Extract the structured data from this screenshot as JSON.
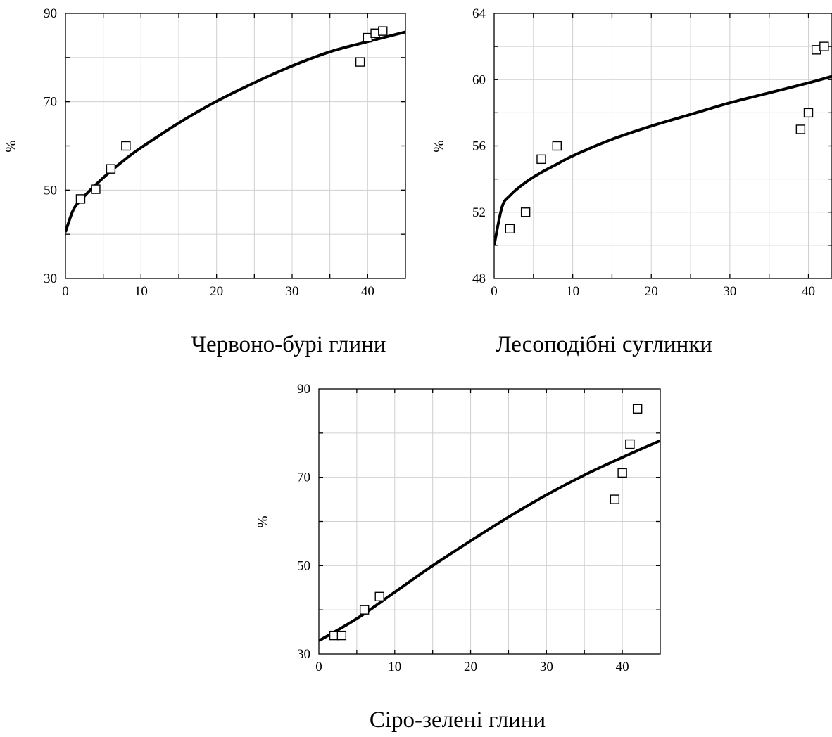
{
  "chart_data": [
    {
      "type": "scatter",
      "title": "",
      "caption": "Червоно-бурі глини",
      "xlabel": "",
      "ylabel": "%",
      "xlim": [
        0,
        45
      ],
      "ylim": [
        30,
        90
      ],
      "xticks": [
        0,
        10,
        20,
        30,
        40
      ],
      "xtick_labels": [
        "0",
        "10",
        "20",
        "30",
        "40"
      ],
      "yticks": [
        30,
        50,
        70,
        90
      ],
      "ytick_labels": [
        "30",
        "50",
        "70",
        "90"
      ],
      "grid": true,
      "points": [
        {
          "x": 2,
          "y": 48
        },
        {
          "x": 4,
          "y": 50.2
        },
        {
          "x": 6,
          "y": 54.8
        },
        {
          "x": 8,
          "y": 60
        },
        {
          "x": 39,
          "y": 79
        },
        {
          "x": 40,
          "y": 84.5
        },
        {
          "x": 41,
          "y": 85.5
        },
        {
          "x": 42,
          "y": 86
        }
      ],
      "fit_curve": [
        {
          "x": 0,
          "y": 40.5
        },
        {
          "x": 1,
          "y": 45.4
        },
        {
          "x": 2,
          "y": 47.7
        },
        {
          "x": 4,
          "y": 51.2
        },
        {
          "x": 6,
          "y": 54.3
        },
        {
          "x": 8,
          "y": 57.1
        },
        {
          "x": 10,
          "y": 59.6
        },
        {
          "x": 15,
          "y": 65.2
        },
        {
          "x": 20,
          "y": 70.1
        },
        {
          "x": 25,
          "y": 74.3
        },
        {
          "x": 30,
          "y": 78.1
        },
        {
          "x": 35,
          "y": 81.3
        },
        {
          "x": 40,
          "y": 83.6
        },
        {
          "x": 45,
          "y": 85.8
        }
      ]
    },
    {
      "type": "scatter",
      "title": "",
      "caption": "Лесоподібні суглинки",
      "xlabel": "",
      "ylabel": "%",
      "xlim": [
        0,
        43
      ],
      "ylim": [
        48,
        64
      ],
      "xticks": [
        0,
        10,
        20,
        30,
        40
      ],
      "xtick_labels": [
        "0",
        "10",
        "20",
        "30",
        "40"
      ],
      "yticks": [
        48,
        52,
        56,
        60,
        64
      ],
      "ytick_labels": [
        "48",
        "52",
        "56",
        "60",
        "64"
      ],
      "grid": true,
      "points": [
        {
          "x": 2,
          "y": 51
        },
        {
          "x": 4,
          "y": 52
        },
        {
          "x": 6,
          "y": 55.2
        },
        {
          "x": 8,
          "y": 56
        },
        {
          "x": 39,
          "y": 57
        },
        {
          "x": 40,
          "y": 58
        },
        {
          "x": 41,
          "y": 61.8
        },
        {
          "x": 42,
          "y": 62
        }
      ],
      "fit_curve": [
        {
          "x": 0,
          "y": 50
        },
        {
          "x": 1,
          "y": 52.3
        },
        {
          "x": 2,
          "y": 53
        },
        {
          "x": 4,
          "y": 53.8
        },
        {
          "x": 6,
          "y": 54.4
        },
        {
          "x": 8,
          "y": 54.9
        },
        {
          "x": 10,
          "y": 55.4
        },
        {
          "x": 15,
          "y": 56.4
        },
        {
          "x": 20,
          "y": 57.2
        },
        {
          "x": 25,
          "y": 57.9
        },
        {
          "x": 30,
          "y": 58.6
        },
        {
          "x": 35,
          "y": 59.2
        },
        {
          "x": 40,
          "y": 59.8
        },
        {
          "x": 43,
          "y": 60.2
        }
      ]
    },
    {
      "type": "scatter",
      "title": "",
      "caption": "Сіро-зелені глини",
      "xlabel": "",
      "ylabel": "%",
      "xlim": [
        0,
        45
      ],
      "ylim": [
        30,
        90
      ],
      "xticks": [
        0,
        10,
        20,
        30,
        40
      ],
      "xtick_labels": [
        "0",
        "10",
        "20",
        "30",
        "40"
      ],
      "yticks": [
        30,
        50,
        70,
        90
      ],
      "ytick_labels": [
        "30",
        "50",
        "70",
        "90"
      ],
      "grid": true,
      "points": [
        {
          "x": 2,
          "y": 34.2
        },
        {
          "x": 3,
          "y": 34.2
        },
        {
          "x": 6,
          "y": 40
        },
        {
          "x": 8,
          "y": 43
        },
        {
          "x": 39,
          "y": 65
        },
        {
          "x": 40,
          "y": 71
        },
        {
          "x": 41,
          "y": 77.5
        },
        {
          "x": 42,
          "y": 85.5
        }
      ],
      "fit_curve": [
        {
          "x": 0,
          "y": 33
        },
        {
          "x": 5,
          "y": 38
        },
        {
          "x": 10,
          "y": 44
        },
        {
          "x": 15,
          "y": 50
        },
        {
          "x": 20,
          "y": 55.6
        },
        {
          "x": 25,
          "y": 61
        },
        {
          "x": 30,
          "y": 66
        },
        {
          "x": 35,
          "y": 70.5
        },
        {
          "x": 40,
          "y": 74.5
        },
        {
          "x": 45,
          "y": 78.3
        }
      ]
    }
  ]
}
